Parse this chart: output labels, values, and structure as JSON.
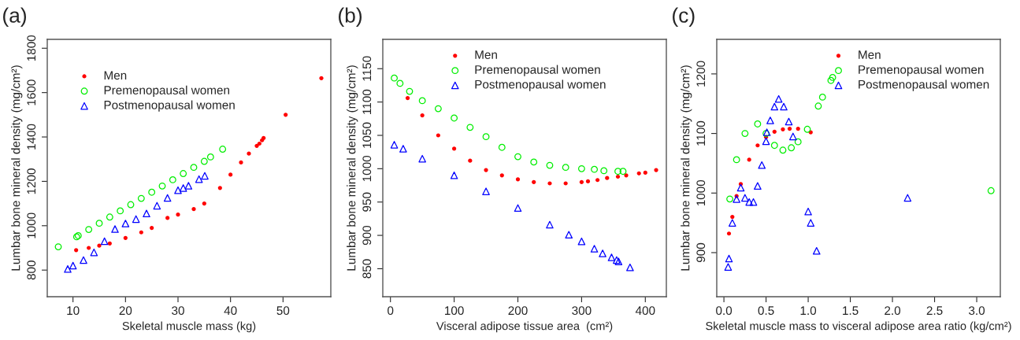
{
  "chart_data": [
    {
      "type": "scatter",
      "title": "(a)",
      "xlabel": "Skeletal muscle mass (kg)",
      "ylabel": "Lumbar bone mineral density (mg/cm²)",
      "xlim": [
        5.1,
        59.1
      ],
      "xticks": [
        10,
        20,
        30,
        40,
        50
      ],
      "ylim": [
        680,
        1840
      ],
      "yticks": [
        800,
        1000,
        1200,
        1400,
        1600,
        1800
      ],
      "grid": false,
      "legend": "top left",
      "series": [
        {
          "name": "Men",
          "color": "#ff0000",
          "marker": "dot",
          "x": [
            10.6,
            13,
            15,
            17,
            20,
            23,
            25,
            28,
            30,
            33,
            35,
            38,
            40,
            42,
            43.5,
            45,
            45.5,
            46,
            46.3,
            50.5,
            57.3
          ],
          "values": [
            890,
            900,
            910,
            920,
            945,
            970,
            990,
            1035,
            1050,
            1075,
            1100,
            1170,
            1230,
            1285,
            1325,
            1360,
            1370,
            1385,
            1395,
            1500,
            1665
          ]
        },
        {
          "name": "Premenopausal women",
          "color": "#00ee00",
          "marker": "circle",
          "x": [
            7.2,
            10.7,
            11,
            13,
            15,
            17,
            19,
            21,
            23,
            25,
            27,
            29,
            31,
            33,
            35,
            36.2,
            38.5
          ],
          "values": [
            905,
            950,
            955,
            983,
            1011,
            1039,
            1067,
            1095,
            1123,
            1151,
            1179,
            1207,
            1235,
            1263,
            1290,
            1310,
            1345
          ]
        },
        {
          "name": "Postmenopausal women",
          "color": "#0000ff",
          "marker": "triangle",
          "x": [
            9,
            10,
            12,
            14,
            16,
            18,
            20,
            22,
            24,
            26,
            28,
            30,
            31,
            32,
            34,
            35.1
          ],
          "values": [
            805,
            820,
            845,
            880,
            930,
            985,
            1010,
            1030,
            1055,
            1090,
            1125,
            1160,
            1170,
            1180,
            1210,
            1225
          ]
        }
      ]
    },
    {
      "type": "scatter",
      "title": "(b)",
      "xlabel": "Visceral adipose tissue area  (cm²)",
      "ylabel": "Lumbar bone mineral density (mg/cm²)",
      "xlim": [
        -12,
        433
      ],
      "xticks": [
        0,
        100,
        200,
        300,
        400
      ],
      "ylim": [
        808,
        1194
      ],
      "yticks": [
        850,
        900,
        950,
        1000,
        1050,
        1100,
        1150
      ],
      "grid": false,
      "legend": "top",
      "series": [
        {
          "name": "Men",
          "color": "#ff0000",
          "marker": "dot",
          "x": [
            27,
            50,
            75,
            100,
            125,
            150,
            175,
            200,
            225,
            250,
            275,
            300,
            310,
            325,
            340,
            357,
            370,
            390,
            400,
            417
          ],
          "values": [
            1106,
            1080,
            1050,
            1030,
            1012,
            998,
            990,
            984,
            980,
            978,
            978,
            980,
            981,
            983,
            986,
            988,
            990,
            993,
            994,
            998
          ]
        },
        {
          "name": "Premenopausal women",
          "color": "#00ee00",
          "marker": "circle",
          "x": [
            6,
            15,
            30,
            50,
            75,
            100,
            125,
            150,
            175,
            200,
            225,
            250,
            275,
            300,
            320,
            335,
            357,
            365
          ],
          "values": [
            1136,
            1128,
            1116,
            1102,
            1090,
            1076,
            1062,
            1048,
            1032,
            1018,
            1010,
            1005,
            1002,
            1000,
            999,
            997,
            996,
            996
          ]
        },
        {
          "name": "Postmenopausal women",
          "color": "#0000ff",
          "marker": "triangle",
          "x": [
            6,
            20,
            50,
            100,
            150,
            200,
            250,
            280,
            300,
            320,
            333,
            347,
            355,
            358,
            376
          ],
          "values": [
            1036,
            1030,
            1015,
            990,
            966,
            941,
            916,
            901,
            891,
            880,
            873,
            867,
            863,
            861,
            852
          ]
        }
      ]
    },
    {
      "type": "scatter",
      "title": "(c)",
      "xlabel": "Skeletal muscle mass to visceral adipose area ratio (kg/cm²)",
      "ylabel": "Lumbar bone mineral density (mg/cm²)",
      "xlim": [
        -0.085,
        3.28
      ],
      "xticks": [
        {
          "value": 0,
          "label": "0.0"
        },
        0.5,
        {
          "value": 1,
          "label": "1.0"
        },
        1.5,
        {
          "value": 2,
          "label": "2.0"
        },
        2.5,
        {
          "value": 3,
          "label": "3.0"
        }
      ],
      "ylim": [
        826,
        1258
      ],
      "yticks": [
        900,
        1000,
        1100,
        1200
      ],
      "grid": false,
      "legend": "top right",
      "series": [
        {
          "name": "Men",
          "color": "#ff0000",
          "marker": "dot",
          "x": [
            0.06,
            0.1,
            0.15,
            0.2,
            0.3,
            0.4,
            0.5,
            0.6,
            0.7,
            0.78,
            0.88,
            1.03
          ],
          "values": [
            932,
            960,
            995,
            1015,
            1056,
            1080,
            1094,
            1103,
            1107,
            1108,
            1108,
            1102
          ]
        },
        {
          "name": "Premenopausal women",
          "color": "#00ee00",
          "marker": "circle",
          "x": [
            0.07,
            0.15,
            0.25,
            0.4,
            0.5,
            0.6,
            0.7,
            0.8,
            0.88,
            0.99,
            1.12,
            1.17,
            1.27,
            1.29,
            3.17
          ],
          "values": [
            990,
            1056,
            1100,
            1116,
            1100,
            1080,
            1072,
            1076,
            1086,
            1107,
            1146,
            1161,
            1189,
            1194,
            1004
          ]
        },
        {
          "name": "Postmenopausal women",
          "color": "#0000ff",
          "marker": "triangle",
          "x": [
            0.05,
            0.06,
            0.1,
            0.15,
            0.2,
            0.25,
            0.3,
            0.35,
            0.4,
            0.45,
            0.5,
            0.51,
            0.55,
            0.6,
            0.65,
            0.71,
            0.77,
            0.82,
            1.0,
            1.03,
            1.1,
            2.18
          ],
          "values": [
            876,
            890,
            950,
            990,
            1009,
            992,
            985,
            985,
            1012,
            1047,
            1087,
            1102,
            1122,
            1145,
            1158,
            1145,
            1120,
            1095,
            969,
            950,
            903,
            992
          ]
        }
      ]
    }
  ]
}
